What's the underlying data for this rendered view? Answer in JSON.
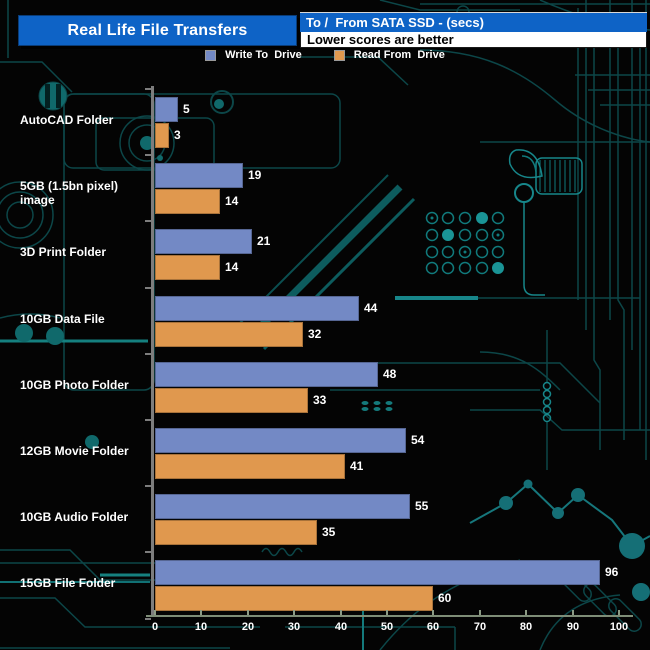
{
  "header": {
    "title": "Real Life File Transfers",
    "subtitle_primary": "To /  From SATA SSD - (secs)",
    "subtitle_secondary": "Lower scores are better"
  },
  "legend": {
    "items": [
      {
        "label": "Write To  Drive",
        "color": "#7389c5"
      },
      {
        "label": "Read From  Drive",
        "color": "#e0984e"
      }
    ]
  },
  "chart_data": {
    "type": "bar",
    "orientation": "horizontal",
    "title": "Real Life File Transfers",
    "subtitle": "To /  From SATA SSD - (secs)",
    "note": "Lower scores are better",
    "unit": "seconds",
    "lower_is_better": true,
    "categories": [
      "AutoCAD Folder",
      "5GB (1.5bn pixel) image",
      "3D Print Folder",
      "10GB Data File",
      "10GB Photo Folder",
      "12GB Movie Folder",
      "10GB Audio Folder",
      "15GB File Folder"
    ],
    "series": [
      {
        "name": "Write To  Drive",
        "color": "#7389c5",
        "values": [
          5,
          19,
          21,
          44,
          48,
          54,
          55,
          96
        ]
      },
      {
        "name": "Read From  Drive",
        "color": "#e0984e",
        "values": [
          3,
          14,
          14,
          32,
          33,
          41,
          35,
          60
        ]
      }
    ],
    "xlim": [
      0,
      100
    ],
    "x_ticks": [
      0,
      10,
      20,
      30,
      40,
      50,
      60,
      70,
      80,
      90,
      100
    ],
    "value_labels_shown": true,
    "legend_position": "top",
    "grid": false
  },
  "colors": {
    "background": "#040404",
    "header_blue": "#0e63c6",
    "bar_write": "#7389c5",
    "bar_read": "#e0984e",
    "y_axis": "#7d7d7d",
    "x_axis": "#7e8d77",
    "text": "#ffffff",
    "circuit_dark": "#0c4648",
    "circuit_bright": "#17868a"
  }
}
